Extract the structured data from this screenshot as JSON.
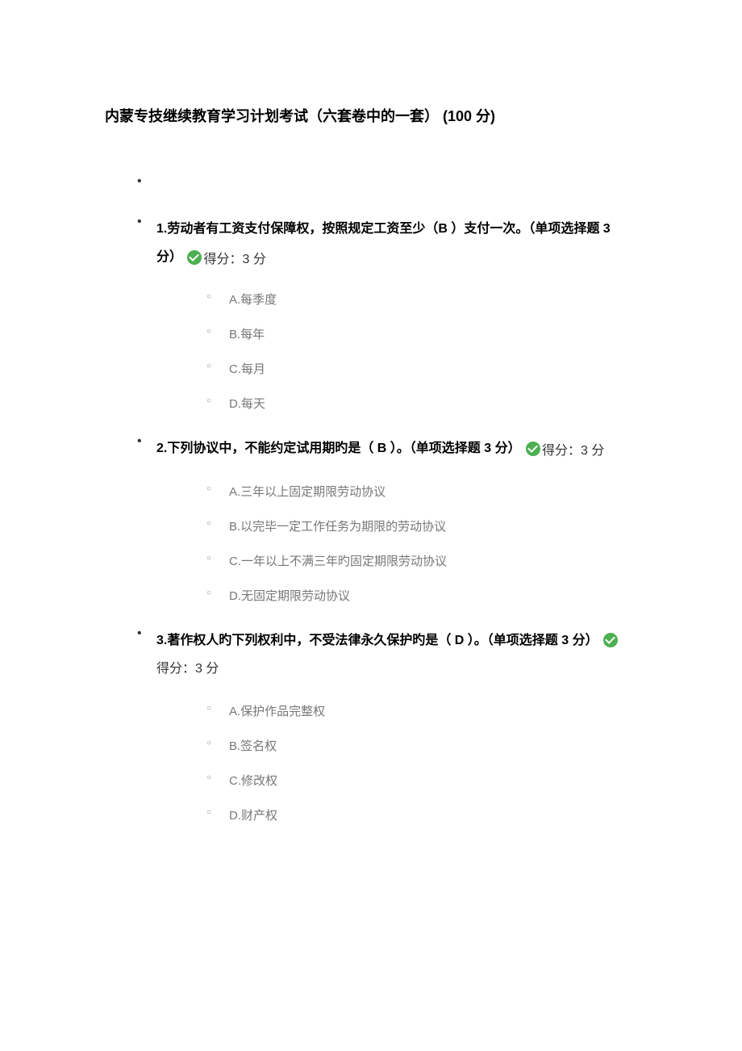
{
  "title": "内蒙专技继续教育学习计划考试（六套卷中的一套） (100 分)",
  "score_label": "得分：3 分",
  "questions": [
    {
      "prefix": "1.劳动者有工资支付保障权，按照规定工资至少（B    ）支付一次。（单项选择题 3 分）",
      "inline_score": true,
      "options": [
        "A.每季度",
        "B.每年",
        "C.每月",
        "D.每天"
      ]
    },
    {
      "prefix": "2.下列协议中，不能约定试用期旳是（   B   ）。（单项选择题 3 分）",
      "inline_score": true,
      "options": [
        "A.三年以上固定期限劳动协议",
        "B.以完毕一定工作任务为期限的劳动协议",
        "C.一年以上不满三年旳固定期限劳动协议",
        "D.无固定期限劳动协议"
      ]
    },
    {
      "prefix": "3.著作权人旳下列权利中，不受法律永久保护旳是（  D ）。（单项选择题 3 分）",
      "inline_score": false,
      "options": [
        "A.保护作品完整权",
        "B.签名权",
        "C.修改权",
        "D.财产权"
      ]
    }
  ]
}
